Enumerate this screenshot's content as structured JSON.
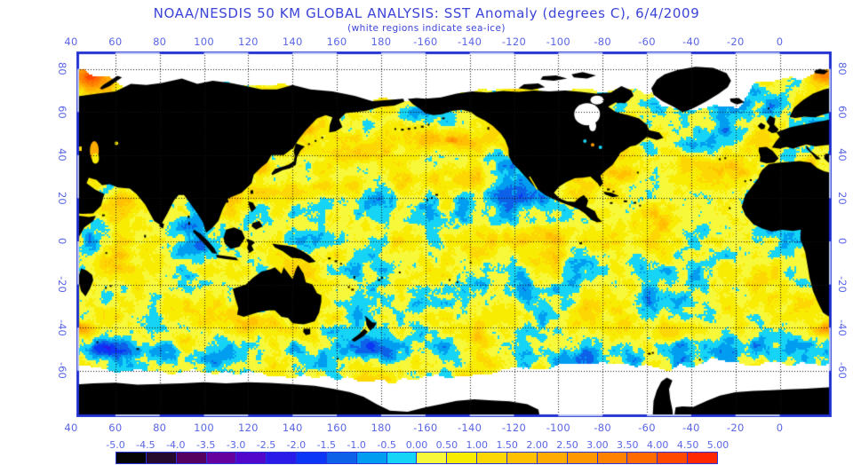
{
  "header": {
    "title": "NOAA/NESDIS 50 KM GLOBAL ANALYSIS: SST Anomaly (degrees C), 6/4/2009",
    "subtitle": "(white regions indicate sea-ice)"
  },
  "axes": {
    "lon": {
      "labels": [
        "40",
        "60",
        "80",
        "100",
        "120",
        "140",
        "160",
        "180",
        "-160",
        "-140",
        "-120",
        "-100",
        "-80",
        "-60",
        "-40",
        "-20",
        "0"
      ],
      "values": [
        40,
        60,
        80,
        100,
        120,
        140,
        160,
        180,
        200,
        220,
        240,
        260,
        280,
        300,
        320,
        340,
        360
      ]
    },
    "lat": {
      "labels": [
        "80",
        "60",
        "40",
        "20",
        "0",
        "-20",
        "-40",
        "-60"
      ],
      "values": [
        80,
        60,
        40,
        20,
        0,
        -20,
        -40,
        -60
      ]
    }
  },
  "colorbar": {
    "units": "degrees C",
    "tick_labels": [
      "-5.0",
      "-4.5",
      "-4.0",
      "-3.5",
      "-3.0",
      "-2.5",
      "-2.0",
      "-1.5",
      "-1.0",
      "-0.5",
      "0.00",
      "0.50",
      "1.00",
      "1.50",
      "2.00",
      "2.50",
      "3.00",
      "3.50",
      "4.00",
      "4.50",
      "5.00"
    ],
    "cell_colors": [
      "#050505",
      "#260b2e",
      "#560160",
      "#66019e",
      "#5207cb",
      "#2b1be9",
      "#0b36f5",
      "#0d60e8",
      "#019df0",
      "#15d4f6",
      "#f8f83a",
      "#f9ec03",
      "#fcd703",
      "#ffc102",
      "#ffab01",
      "#ff9801",
      "#ff8301",
      "#ff6b00",
      "#ff4800",
      "#ff2800"
    ]
  },
  "colors": {
    "title_text": "#3c44d8",
    "axis_text": "#5a66e6",
    "frame_dark": "#1e2ecf",
    "frame_light": "#b9c3f4",
    "land": "#000000",
    "sea_ice": "#ffffff",
    "grid_dot": "#141414",
    "background": "#ffffff"
  }
}
